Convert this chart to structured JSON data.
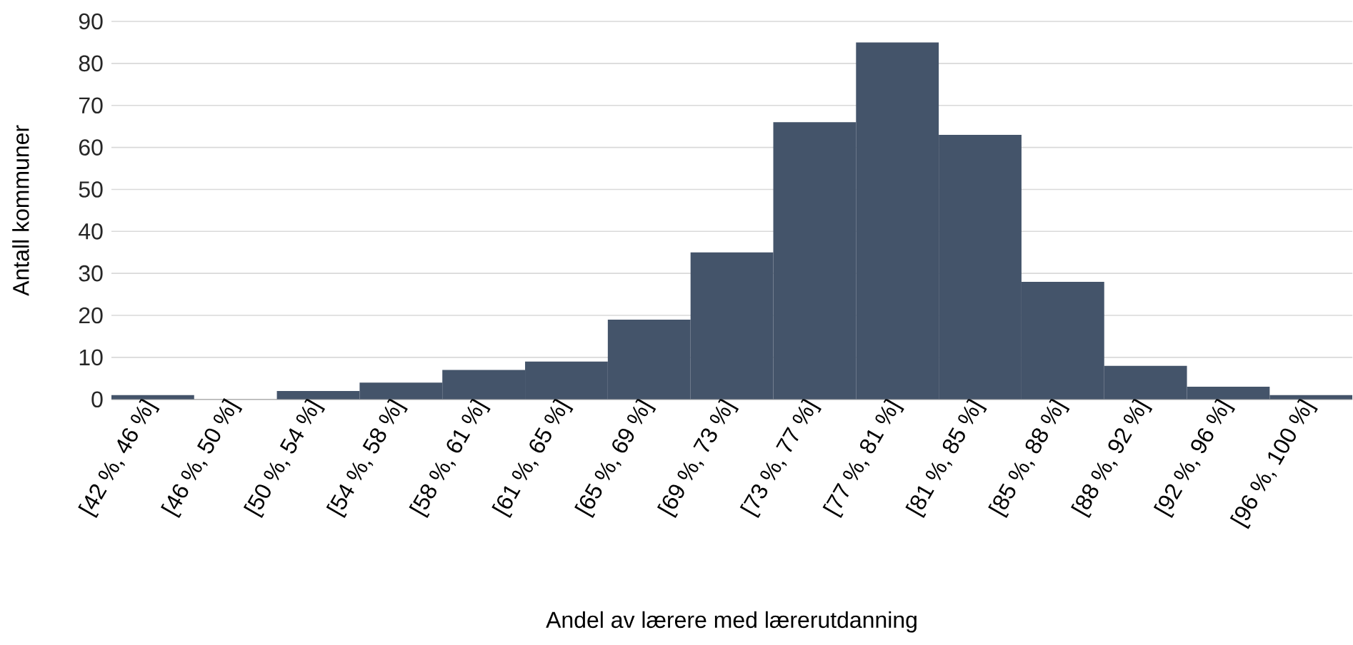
{
  "chart_data": {
    "type": "bar",
    "xlabel": "Andel av lærere med lærerutdanning",
    "ylabel": "Antall kommuner",
    "categories": [
      "[42 %, 46 %]",
      "[46 %, 50 %]",
      "[50 %, 54 %]",
      "[54 %, 58 %]",
      "[58 %, 61 %]",
      "[61 %, 65 %]",
      "[65 %, 69 %]",
      "[69 %, 73 %]",
      "[73 %, 77 %]",
      "[77 %, 81 %]",
      "[81 %, 85 %]",
      "[85 %, 88 %]",
      "[88 %, 92 %]",
      "[92 %, 96 %]",
      "[96 %, 100 %]"
    ],
    "values": [
      1,
      0,
      2,
      4,
      7,
      9,
      19,
      35,
      66,
      85,
      63,
      28,
      8,
      3,
      1
    ],
    "color": "#44546a",
    "ylim": [
      0,
      90
    ],
    "yticks": [
      0,
      10,
      20,
      30,
      40,
      50,
      60,
      70,
      80,
      90
    ],
    "grid": "y"
  }
}
